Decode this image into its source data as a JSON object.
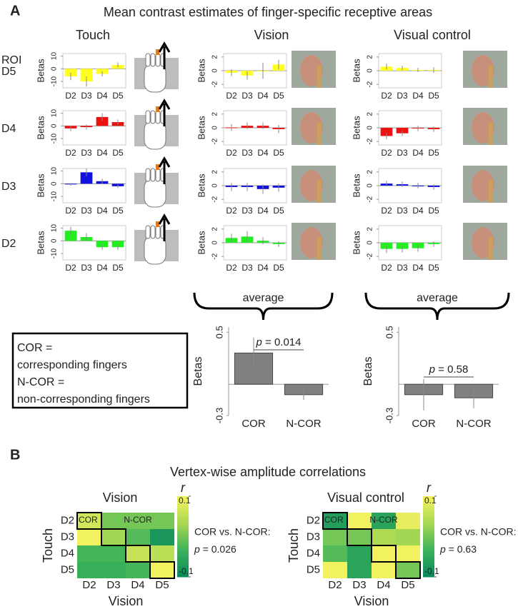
{
  "panel_a": {
    "letter": "A",
    "title": "Mean contrast estimates of finger-specific receptive areas",
    "columns": [
      "Touch",
      "Vision",
      "Visual control"
    ],
    "roi_label": "ROI",
    "rows": [
      "D5",
      "D4",
      "D3",
      "D2"
    ],
    "average_labels": [
      "average",
      "average"
    ],
    "legend_box": [
      "COR =",
      "corresponding fingers",
      "N-COR =",
      "non-corresponding fingers"
    ]
  },
  "panel_b": {
    "letter": "B",
    "title": "Vertex-wise amplitude correlations"
  },
  "chart_data": [
    {
      "type": "bar",
      "ylabel": "Betas",
      "categories": [
        "D2",
        "D3",
        "D4",
        "D5"
      ],
      "values": [
        -6,
        -10,
        -4,
        3
      ],
      "errors": [
        3,
        4,
        2,
        2
      ],
      "color": "#ffff22",
      "ylim": [
        -15,
        12
      ],
      "yticks": [
        -10,
        0,
        10
      ]
    },
    {
      "type": "bar",
      "ylabel": "Betas",
      "categories": [
        "D2",
        "D3",
        "D4",
        "D5"
      ],
      "values": [
        -0.3,
        -0.7,
        0,
        0.9
      ],
      "errors": [
        0.5,
        0.6,
        1.2,
        0.7
      ],
      "color": "#ffff22",
      "ylim": [
        -2.5,
        2.5
      ],
      "yticks": [
        -2,
        0,
        2
      ]
    },
    {
      "type": "bar",
      "ylabel": "Betas",
      "categories": [
        "D2",
        "D3",
        "D4",
        "D5"
      ],
      "values": [
        0.6,
        0.4,
        0.1,
        0.1
      ],
      "errors": [
        0.4,
        0.3,
        0.3,
        0.4
      ],
      "color": "#ffff22",
      "ylim": [
        -2.5,
        2.5
      ],
      "yticks": [
        -2,
        0,
        2
      ]
    },
    {
      "type": "bar",
      "ylabel": "Betas",
      "categories": [
        "D2",
        "D3",
        "D4",
        "D5"
      ],
      "values": [
        -2,
        -1,
        7,
        3
      ],
      "errors": [
        2,
        2,
        3,
        2
      ],
      "color": "#ee1111",
      "ylim": [
        -15,
        12
      ],
      "yticks": [
        -10,
        0,
        10
      ]
    },
    {
      "type": "bar",
      "ylabel": "Betas",
      "categories": [
        "D2",
        "D3",
        "D4",
        "D5"
      ],
      "values": [
        0.05,
        0.3,
        0.3,
        -0.2
      ],
      "errors": [
        0.5,
        0.5,
        0.5,
        0.6
      ],
      "color": "#ee1111",
      "ylim": [
        -2.5,
        2.5
      ],
      "yticks": [
        -2,
        0,
        2
      ]
    },
    {
      "type": "bar",
      "ylabel": "Betas",
      "categories": [
        "D2",
        "D3",
        "D4",
        "D5"
      ],
      "values": [
        -1.2,
        -0.8,
        -0.1,
        -0.2
      ],
      "errors": [
        0.5,
        0.4,
        0.4,
        0.4
      ],
      "color": "#ee1111",
      "ylim": [
        -2.5,
        2.5
      ],
      "yticks": [
        -2,
        0,
        2
      ]
    },
    {
      "type": "bar",
      "ylabel": "Betas",
      "categories": [
        "D2",
        "D3",
        "D4",
        "D5"
      ],
      "values": [
        -0.5,
        9,
        2,
        -2
      ],
      "errors": [
        1,
        3,
        2,
        1.5
      ],
      "color": "#1111dd",
      "ylim": [
        -15,
        12
      ],
      "yticks": [
        -10,
        0,
        10
      ]
    },
    {
      "type": "bar",
      "ylabel": "Betas",
      "categories": [
        "D2",
        "D3",
        "D4",
        "D5"
      ],
      "values": [
        -0.2,
        -0.2,
        -0.5,
        -0.3
      ],
      "errors": [
        0.6,
        0.6,
        0.7,
        0.6
      ],
      "color": "#1111dd",
      "ylim": [
        -2.5,
        2.5
      ],
      "yticks": [
        -2,
        0,
        2
      ]
    },
    {
      "type": "bar",
      "ylabel": "Betas",
      "categories": [
        "D2",
        "D3",
        "D4",
        "D5"
      ],
      "values": [
        0.3,
        0.2,
        0,
        -0.2
      ],
      "errors": [
        0.4,
        0.4,
        0.4,
        0.4
      ],
      "color": "#1111dd",
      "ylim": [
        -2.5,
        2.5
      ],
      "yticks": [
        -2,
        0,
        2
      ]
    },
    {
      "type": "bar",
      "ylabel": "Betas",
      "categories": [
        "D2",
        "D3",
        "D4",
        "D5"
      ],
      "values": [
        8,
        3,
        -5,
        -5
      ],
      "errors": [
        3,
        3,
        2,
        2
      ],
      "color": "#22ee22",
      "ylim": [
        -15,
        12
      ],
      "yticks": [
        -10,
        0,
        10
      ]
    },
    {
      "type": "bar",
      "ylabel": "Betas",
      "categories": [
        "D2",
        "D3",
        "D4",
        "D5"
      ],
      "values": [
        0.7,
        0.9,
        0.3,
        -0.2
      ],
      "errors": [
        0.6,
        0.8,
        0.5,
        0.4
      ],
      "color": "#22ee22",
      "ylim": [
        -2.5,
        2.5
      ],
      "yticks": [
        -2,
        0,
        2
      ]
    },
    {
      "type": "bar",
      "ylabel": "Betas",
      "categories": [
        "D2",
        "D3",
        "D4",
        "D5"
      ],
      "values": [
        -0.9,
        -0.9,
        -0.8,
        -0.2
      ],
      "errors": [
        0.6,
        0.5,
        0.5,
        0.4
      ],
      "color": "#22ee22",
      "ylim": [
        -2.5,
        2.5
      ],
      "yticks": [
        -2,
        0,
        2
      ]
    },
    {
      "type": "bar",
      "ylabel": "Betas",
      "categories": [
        "COR",
        "N-COR"
      ],
      "values": [
        0.3,
        -0.1
      ],
      "errors": [
        0.15,
        0.05
      ],
      "color": "#808080",
      "ylim": [
        -0.3,
        0.55
      ],
      "yticks": [
        -0.3,
        0.5
      ],
      "p_symbol": "p",
      "p_value": " = 0.014"
    },
    {
      "type": "bar",
      "ylabel": "Betas",
      "categories": [
        "COR",
        "N-COR"
      ],
      "values": [
        -0.1,
        -0.13
      ],
      "errors": [
        0.15,
        0.1
      ],
      "color": "#808080",
      "ylim": [
        -0.3,
        0.55
      ],
      "yticks": [
        -0.3,
        0.5
      ],
      "p_symbol": "p",
      "p_value": " = 0.58"
    },
    {
      "type": "heatmap",
      "title": "Vision",
      "x_categories": [
        "D2",
        "D3",
        "D4",
        "D5"
      ],
      "y_categories": [
        "D2",
        "D3",
        "D4",
        "D5"
      ],
      "xlabel": "Vision",
      "ylabel": "Touch",
      "values": [
        [
          0.07,
          0.0,
          0.0,
          0.0
        ],
        [
          0.1,
          0.03,
          -0.02,
          -0.08
        ],
        [
          -0.03,
          -0.03,
          0.06,
          0.05
        ],
        [
          -0.04,
          -0.04,
          -0.03,
          0.1
        ]
      ],
      "colorbar_label": "r",
      "clim": [
        -0.1,
        0.1
      ],
      "cticks": [
        -0.1,
        0.1
      ],
      "annotations": [
        "COR",
        "N-COR"
      ],
      "stat_label": "COR vs. N-COR:",
      "p_symbol": "p",
      "p_value": " = 0.026"
    },
    {
      "type": "heatmap",
      "title": "Visual control",
      "x_categories": [
        "D2",
        "D3",
        "D4",
        "D5"
      ],
      "y_categories": [
        "D2",
        "D3",
        "D4",
        "D5"
      ],
      "xlabel": "Vision",
      "ylabel": "Touch",
      "values": [
        [
          -0.07,
          0.1,
          -0.06,
          0.09
        ],
        [
          0.0,
          0.0,
          0.04,
          0.03
        ],
        [
          -0.02,
          -0.06,
          0.1,
          0.1
        ],
        [
          0.1,
          -0.06,
          0.1,
          0.0
        ]
      ],
      "colorbar_label": "r",
      "clim": [
        -0.1,
        0.1
      ],
      "cticks": [
        -0.1,
        0.1
      ],
      "annotations": [
        "COR",
        "N-COR"
      ],
      "stat_label": "COR vs. N-COR:",
      "p_symbol": "p",
      "p_value": " = 0.63"
    }
  ]
}
